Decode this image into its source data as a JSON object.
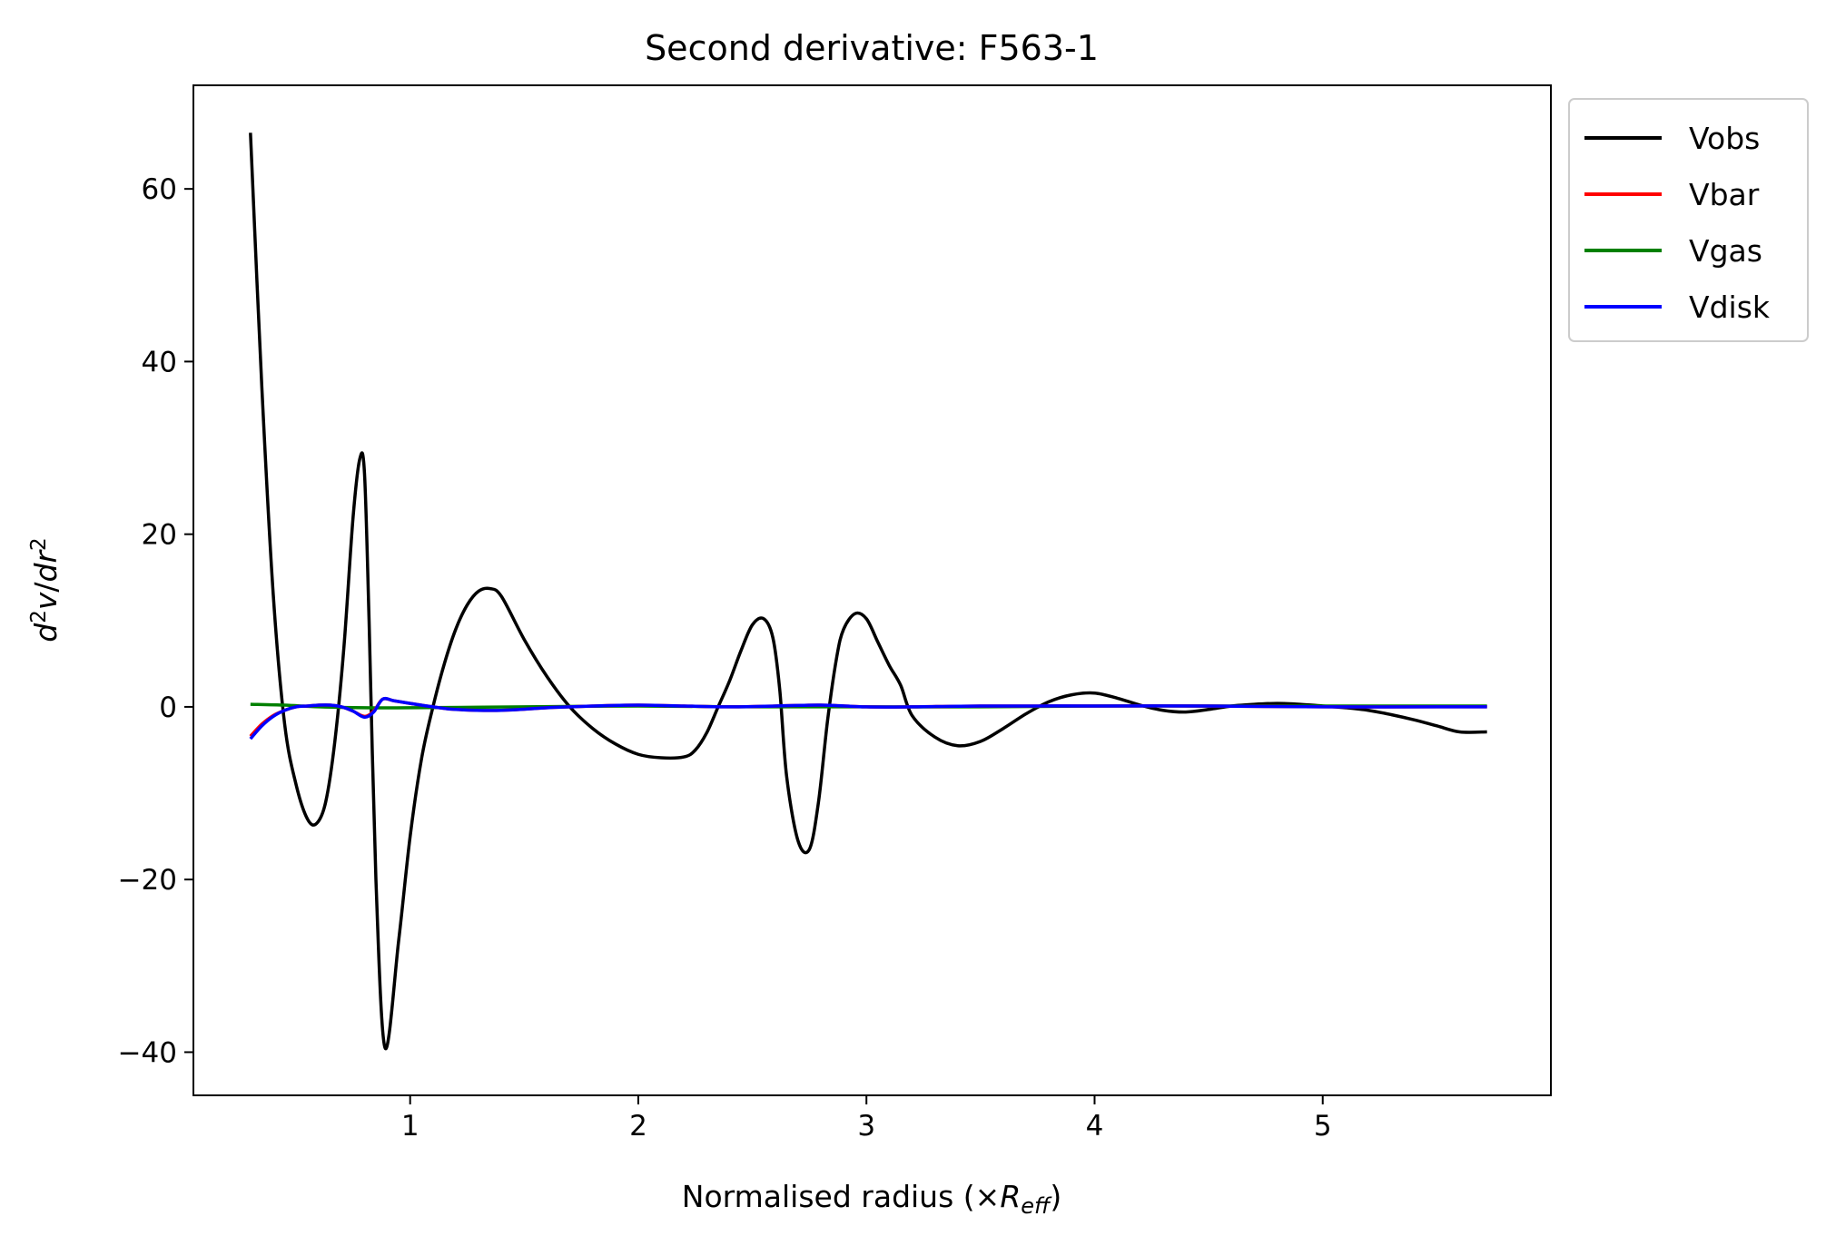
{
  "chart_data": {
    "type": "line",
    "title": "Second derivative: F563-1",
    "xlabel": "Normalised radius (×R_eff)",
    "ylabel": "d^2v/dr^2",
    "xlim": [
      0.05,
      6.0
    ],
    "ylim": [
      -45,
      72
    ],
    "xticks": [
      1,
      2,
      3,
      4,
      5
    ],
    "yticks": [
      -40,
      -20,
      0,
      20,
      40,
      60
    ],
    "grid": false,
    "legend_position": "outside-top-right",
    "series": [
      {
        "name": "Vobs",
        "color": "#000000",
        "x": [
          0.3,
          0.35,
          0.4,
          0.45,
          0.5,
          0.55,
          0.59,
          0.63,
          0.67,
          0.71,
          0.75,
          0.78,
          0.8,
          0.82,
          0.85,
          0.89,
          0.95,
          1.0,
          1.05,
          1.1,
          1.15,
          1.2,
          1.25,
          1.3,
          1.35,
          1.4,
          1.5,
          1.6,
          1.7,
          1.8,
          1.9,
          2.0,
          2.1,
          2.2,
          2.25,
          2.3,
          2.35,
          2.4,
          2.45,
          2.5,
          2.55,
          2.59,
          2.62,
          2.65,
          2.7,
          2.75,
          2.79,
          2.83,
          2.87,
          2.9,
          2.95,
          3.0,
          3.05,
          3.1,
          3.15,
          3.2,
          3.3,
          3.4,
          3.5,
          3.6,
          3.7,
          3.8,
          3.9,
          4.0,
          4.1,
          4.2,
          4.3,
          4.4,
          4.5,
          4.6,
          4.7,
          4.8,
          4.9,
          5.0,
          5.1,
          5.2,
          5.3,
          5.4,
          5.5,
          5.6,
          5.72
        ],
        "y": [
          66.5,
          37,
          13,
          -2,
          -9,
          -13,
          -13.5,
          -11,
          -4,
          7,
          22,
          28.8,
          27,
          10,
          -20,
          -39.5,
          -27,
          -15,
          -6,
          0,
          5,
          9,
          11.8,
          13.4,
          13.7,
          12.8,
          7.8,
          3.5,
          0,
          -2.5,
          -4.3,
          -5.5,
          -5.9,
          -5.8,
          -5,
          -3,
          0,
          3,
          6.5,
          9.5,
          10.2,
          8,
          2,
          -8,
          -15.5,
          -16.5,
          -11,
          -1.5,
          5.8,
          9,
          10.8,
          10.2,
          7.5,
          4.8,
          2.5,
          -1,
          -3.5,
          -4.5,
          -4,
          -2.5,
          -0.8,
          0.6,
          1.4,
          1.6,
          1.0,
          0.2,
          -0.4,
          -0.6,
          -0.3,
          0.1,
          0.3,
          0.4,
          0.3,
          0.1,
          -0.1,
          -0.4,
          -0.9,
          -1.5,
          -2.2,
          -2.9,
          -2.9
        ]
      },
      {
        "name": "Vbar",
        "color": "#ff0000",
        "x": [
          0.3,
          0.35,
          0.4,
          0.45,
          0.5,
          0.55,
          0.6,
          0.65,
          0.7,
          0.75,
          0.8,
          0.84,
          0.88,
          0.93,
          1.0,
          1.1,
          1.2,
          1.4,
          1.6,
          1.8,
          2.0,
          2.2,
          2.4,
          2.6,
          2.8,
          3.0,
          3.2,
          3.5,
          4.0,
          4.5,
          5.0,
          5.5,
          5.72
        ],
        "y": [
          -3.4,
          -2.0,
          -1.0,
          -0.4,
          0.0,
          0.1,
          0.2,
          0.2,
          0.0,
          -0.5,
          -1.1,
          -0.5,
          0.9,
          0.7,
          0.4,
          0.0,
          -0.3,
          -0.4,
          -0.1,
          0.1,
          0.2,
          0.1,
          0.0,
          0.1,
          0.2,
          0.0,
          0.0,
          0.1,
          0.1,
          0.1,
          0.0,
          0.0,
          0.0
        ]
      },
      {
        "name": "Vgas",
        "color": "#008000",
        "x": [
          0.3,
          0.45,
          0.6,
          0.8,
          1.0,
          1.5,
          2.0,
          2.5,
          3.0,
          3.5,
          4.0,
          4.5,
          5.0,
          5.5,
          5.72
        ],
        "y": [
          0.3,
          0.2,
          0.0,
          -0.1,
          -0.1,
          0.0,
          0.1,
          0.0,
          0.0,
          0.0,
          0.1,
          0.1,
          0.1,
          0.1,
          0.1
        ]
      },
      {
        "name": "Vdisk",
        "color": "#0000ff",
        "x": [
          0.3,
          0.35,
          0.4,
          0.45,
          0.5,
          0.55,
          0.6,
          0.65,
          0.7,
          0.75,
          0.8,
          0.84,
          0.88,
          0.93,
          1.0,
          1.1,
          1.2,
          1.4,
          1.6,
          1.8,
          2.0,
          2.2,
          2.4,
          2.6,
          2.8,
          3.0,
          3.2,
          3.5,
          4.0,
          4.5,
          5.0,
          5.5,
          5.72
        ],
        "y": [
          -3.7,
          -2.2,
          -1.1,
          -0.4,
          0.0,
          0.1,
          0.2,
          0.2,
          0.0,
          -0.5,
          -1.2,
          -0.6,
          0.9,
          0.7,
          0.4,
          0.0,
          -0.3,
          -0.4,
          -0.1,
          0.1,
          0.2,
          0.1,
          0.0,
          0.1,
          0.2,
          0.0,
          0.0,
          0.1,
          0.1,
          0.1,
          0.0,
          0.0,
          0.0
        ]
      }
    ]
  }
}
